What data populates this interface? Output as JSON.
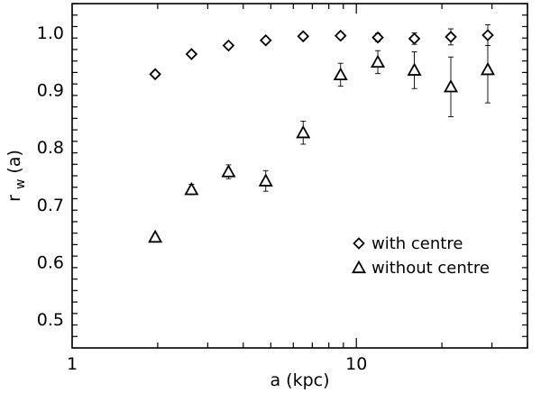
{
  "chart_data": {
    "type": "scatter",
    "title": "",
    "xlabel": "a (kpc)",
    "ylabel_main": "r",
    "ylabel_sub": "w",
    "ylabel_rest": " (a)",
    "xscale": "log",
    "xlim": [
      1,
      40
    ],
    "ylim": [
      0.45,
      1.05
    ],
    "grid": false,
    "legend_position": "lower-right",
    "x_ticks": [
      {
        "value": 1,
        "label": "1"
      },
      {
        "value": 10,
        "label": "10"
      }
    ],
    "y_ticks": [
      {
        "value": 0.5,
        "label": "0.5"
      },
      {
        "value": 0.6,
        "label": "0.6"
      },
      {
        "value": 0.7,
        "label": "0.7"
      },
      {
        "value": 0.8,
        "label": "0.8"
      },
      {
        "value": 0.9,
        "label": "0.9"
      },
      {
        "value": 1.0,
        "label": "1.0"
      }
    ],
    "series": [
      {
        "name": "with centre",
        "marker": "diamond",
        "points": [
          {
            "x": 1.96,
            "y": 0.927,
            "err": 0.003
          },
          {
            "x": 2.63,
            "y": 0.962,
            "err": 0.004
          },
          {
            "x": 3.55,
            "y": 0.977,
            "err": 0.004
          },
          {
            "x": 4.8,
            "y": 0.986,
            "err": 0.004
          },
          {
            "x": 6.5,
            "y": 0.993,
            "err": 0.005
          },
          {
            "x": 8.8,
            "y": 0.994,
            "err": 0.006
          },
          {
            "x": 11.9,
            "y": 0.991,
            "err": 0.007
          },
          {
            "x": 16.0,
            "y": 0.989,
            "err": 0.01
          },
          {
            "x": 21.5,
            "y": 0.992,
            "err": 0.014
          },
          {
            "x": 29.0,
            "y": 0.995,
            "err": 0.018
          }
        ]
      },
      {
        "name": "without centre",
        "marker": "triangle",
        "points": [
          {
            "x": 1.96,
            "y": 0.643,
            "err": 0.004
          },
          {
            "x": 2.63,
            "y": 0.726,
            "err": 0.009
          },
          {
            "x": 3.55,
            "y": 0.757,
            "err": 0.012
          },
          {
            "x": 4.8,
            "y": 0.741,
            "err": 0.018
          },
          {
            "x": 6.5,
            "y": 0.825,
            "err": 0.02
          },
          {
            "x": 8.8,
            "y": 0.926,
            "err": 0.02
          },
          {
            "x": 11.9,
            "y": 0.948,
            "err": 0.02
          },
          {
            "x": 16.0,
            "y": 0.934,
            "err": 0.032
          },
          {
            "x": 21.5,
            "y": 0.905,
            "err": 0.052
          },
          {
            "x": 29.0,
            "y": 0.935,
            "err": 0.058
          }
        ]
      }
    ]
  }
}
